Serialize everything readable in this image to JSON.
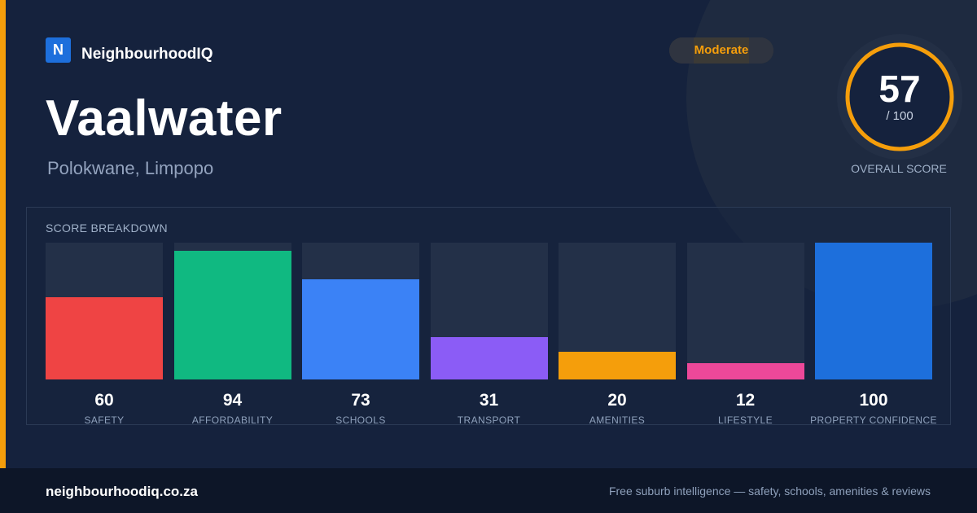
{
  "brand": {
    "logo_letter": "N",
    "name": "NeighbourhoodIQ",
    "logo_color": "#1d6fdc"
  },
  "suburb": {
    "name": "Vaalwater",
    "location": "Polokwane, Limpopo"
  },
  "rating": {
    "label": "Moderate",
    "color": "#f59e0b"
  },
  "overall": {
    "score": "57",
    "max_label": "/ 100",
    "caption": "OVERALL SCORE",
    "ring_color": "#f59e0b"
  },
  "breakdown": {
    "title": "SCORE BREAKDOWN",
    "max": 100,
    "metrics": [
      {
        "label": "SAFETY",
        "value": 60,
        "color": "#ef4444"
      },
      {
        "label": "AFFORDABILITY",
        "value": 94,
        "color": "#10b981"
      },
      {
        "label": "SCHOOLS",
        "value": 73,
        "color": "#3b82f6"
      },
      {
        "label": "TRANSPORT",
        "value": 31,
        "color": "#8b5cf6"
      },
      {
        "label": "AMENITIES",
        "value": 20,
        "color": "#f59e0b"
      },
      {
        "label": "LIFESTYLE",
        "value": 12,
        "color": "#ec4899"
      },
      {
        "label": "PROPERTY CONFIDENCE",
        "value": 100,
        "color": "#1d6fdc"
      }
    ]
  },
  "footer": {
    "domain": "neighbourhoodiq.co.za",
    "tagline": "Free suburb intelligence — safety, schools, amenities & reviews"
  }
}
